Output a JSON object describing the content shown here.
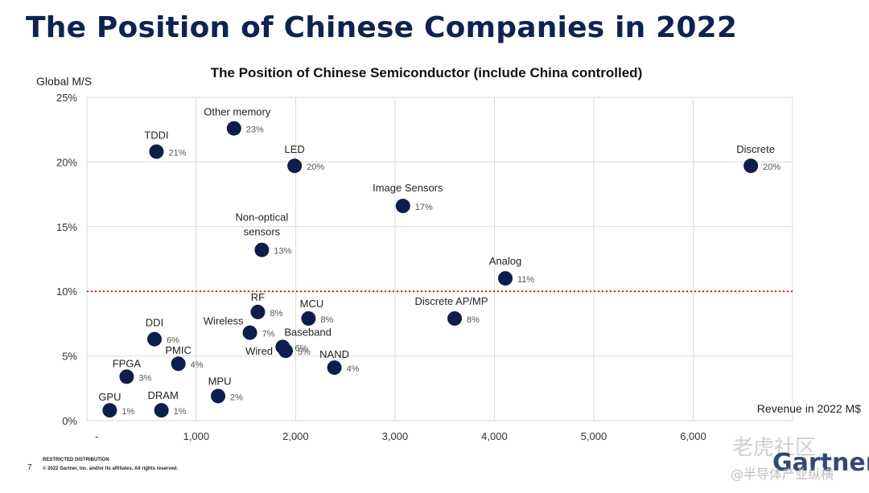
{
  "header": {
    "title": "The Position of Chinese Companies in 2022"
  },
  "chart_data": {
    "type": "scatter",
    "title": "The Position of Chinese Semiconductor (include China controlled)",
    "xlabel": "Revenue in 2022 M$",
    "ylabel": "Global M/S",
    "xlim": [
      -100,
      7000
    ],
    "ylim": [
      0,
      25
    ],
    "x_ticks": [
      {
        "value": 0,
        "label": "-"
      },
      {
        "value": 1000,
        "label": "1,000"
      },
      {
        "value": 2000,
        "label": "2,000"
      },
      {
        "value": 3000,
        "label": "3,000"
      },
      {
        "value": 4000,
        "label": "4,000"
      },
      {
        "value": 5000,
        "label": "5,000"
      },
      {
        "value": 6000,
        "label": "6,000"
      }
    ],
    "y_ticks": [
      {
        "value": 0,
        "label": "0%"
      },
      {
        "value": 5,
        "label": "5%"
      },
      {
        "value": 10,
        "label": "10%"
      },
      {
        "value": 15,
        "label": "15%"
      },
      {
        "value": 20,
        "label": "20%"
      },
      {
        "value": 25,
        "label": "25%"
      }
    ],
    "grid": true,
    "reference_line": {
      "y": 10,
      "color": "#d42020",
      "style": "dotted"
    },
    "marker_color": "#0d1e4d",
    "points": [
      {
        "name": "Other memory",
        "x": 1380,
        "y": 22.6,
        "value_label": "23%"
      },
      {
        "name": "TDDI",
        "x": 600,
        "y": 20.8,
        "value_label": "21%"
      },
      {
        "name": "LED",
        "x": 1990,
        "y": 19.7,
        "value_label": "20%"
      },
      {
        "name": "Discrete",
        "x": 6580,
        "y": 19.7,
        "value_label": "20%"
      },
      {
        "name": "Image Sensors",
        "x": 3080,
        "y": 16.6,
        "value_label": "17%"
      },
      {
        "name": "Non-optical sensors",
        "x": 1660,
        "y": 13.2,
        "value_label": "13%"
      },
      {
        "name": "Analog",
        "x": 4110,
        "y": 11.0,
        "value_label": "11%"
      },
      {
        "name": "RF",
        "x": 1620,
        "y": 8.4,
        "value_label": "8%"
      },
      {
        "name": "MCU",
        "x": 2130,
        "y": 7.9,
        "value_label": "8%"
      },
      {
        "name": "Discrete AP/MP",
        "x": 3600,
        "y": 7.9,
        "value_label": "8%"
      },
      {
        "name": "Wireless",
        "x": 1540,
        "y": 6.8,
        "value_label": "7%"
      },
      {
        "name": "DDI",
        "x": 580,
        "y": 6.3,
        "value_label": "6%"
      },
      {
        "name": "Baseband",
        "x": 1870,
        "y": 5.7,
        "value_label": "6%"
      },
      {
        "name": "Wired",
        "x": 1900,
        "y": 5.4,
        "value_label": "5%"
      },
      {
        "name": "PMIC",
        "x": 820,
        "y": 4.4,
        "value_label": "4%"
      },
      {
        "name": "NAND",
        "x": 2390,
        "y": 4.1,
        "value_label": "4%"
      },
      {
        "name": "FPGA",
        "x": 300,
        "y": 3.4,
        "value_label": "3%"
      },
      {
        "name": "MPU",
        "x": 1220,
        "y": 1.9,
        "value_label": "2%"
      },
      {
        "name": "GPU",
        "x": 130,
        "y": 0.8,
        "value_label": "1%"
      },
      {
        "name": "DRAM",
        "x": 650,
        "y": 0.8,
        "value_label": "1%"
      }
    ]
  },
  "footer": {
    "restricted": "RESTRICTED DISTRIBUTION",
    "copyright": "© 2022 Gartner, Inc. and/or its affiliates. All rights reserved.",
    "page_number": "7",
    "brand": "Gartner"
  },
  "watermark": {
    "line1": "老虎社区",
    "line2": "@半导体产业纵横"
  }
}
